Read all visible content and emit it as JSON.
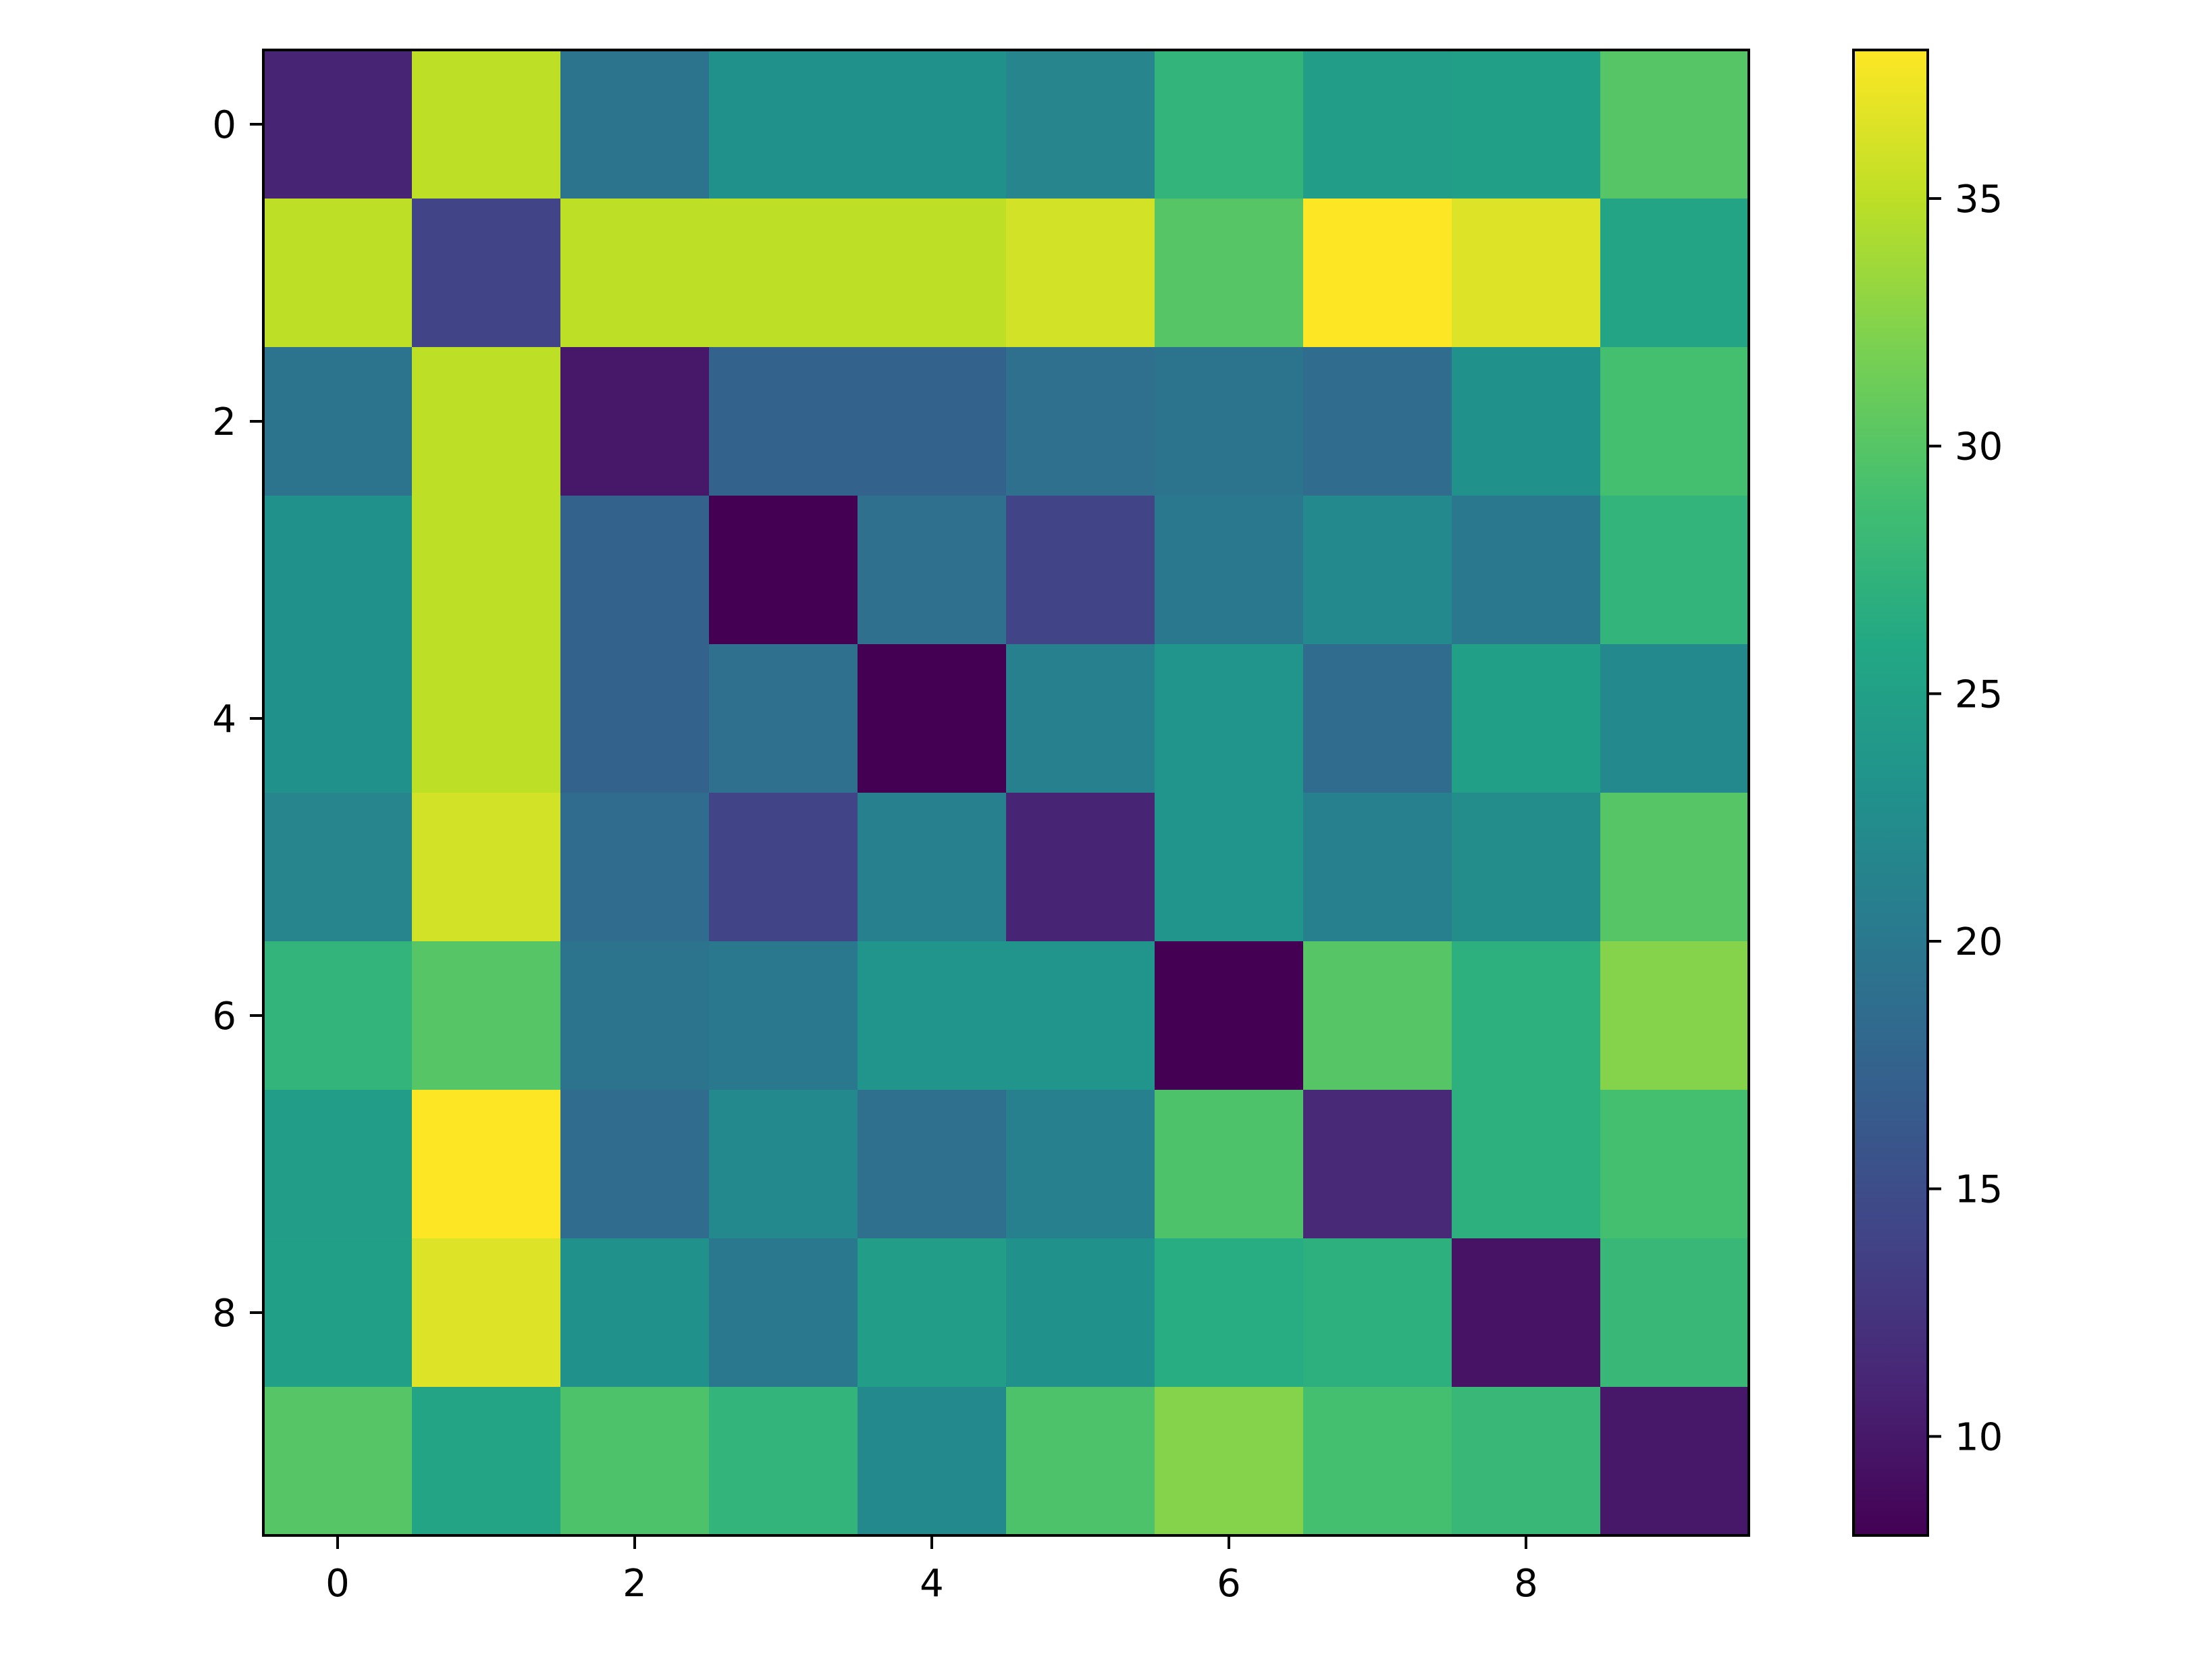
{
  "chart_data": {
    "type": "heatmap",
    "title": "",
    "xlabel": "",
    "ylabel": "",
    "x": [
      0,
      1,
      2,
      3,
      4,
      5,
      6,
      7,
      8,
      9
    ],
    "y": [
      0,
      1,
      2,
      3,
      4,
      5,
      6,
      7,
      8,
      9
    ],
    "x_ticks": [
      "0",
      "2",
      "4",
      "6",
      "8"
    ],
    "y_ticks": [
      "0",
      "2",
      "4",
      "6",
      "8"
    ],
    "colormap": "viridis",
    "color_range": [
      8,
      38
    ],
    "colorbar_ticks": [
      "10",
      "15",
      "20",
      "25",
      "30",
      "35"
    ],
    "values": [
      [
        11,
        35,
        19.5,
        23,
        23,
        21.5,
        27.5,
        24.5,
        25,
        30
      ],
      [
        35,
        14,
        35,
        35,
        35,
        36,
        30,
        38,
        36.5,
        25.5
      ],
      [
        19.5,
        35,
        10,
        17.5,
        17.5,
        19,
        19.5,
        18.5,
        23,
        29
      ],
      [
        23,
        35,
        17.5,
        8,
        19,
        14,
        20,
        22,
        20,
        27.5
      ],
      [
        23,
        35,
        17.5,
        19,
        8,
        21,
        23.5,
        18.5,
        25,
        22
      ],
      [
        21.5,
        36,
        18.5,
        14,
        21,
        11,
        23.5,
        21,
        22.5,
        30
      ],
      [
        27.5,
        30,
        19.5,
        20,
        23.5,
        23.5,
        8,
        30,
        27,
        32.5
      ],
      [
        24.5,
        38,
        18.5,
        22,
        19,
        21,
        29.5,
        11.5,
        27,
        29
      ],
      [
        25,
        36.5,
        23,
        20,
        24.5,
        23,
        26.5,
        27,
        9.5,
        28
      ],
      [
        30,
        25.5,
        29.5,
        27.5,
        22,
        29.5,
        32.5,
        29,
        28,
        10
      ]
    ]
  }
}
